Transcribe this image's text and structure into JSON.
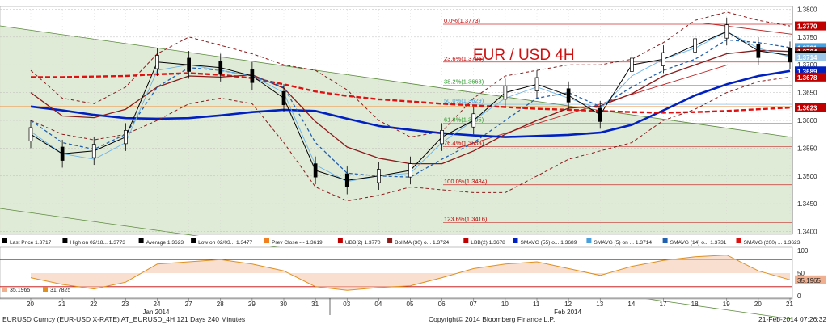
{
  "chart_data": {
    "type": "line",
    "title": "EUR / USD 4H",
    "y_range": [
      1.3395,
      1.3805
    ],
    "y_ticks": [
      "1.3800",
      "1.3750",
      "1.3700",
      "1.3650",
      "1.3600",
      "1.3550",
      "1.3500",
      "1.3450",
      "1.3400"
    ],
    "x_ticks": [
      "20",
      "21",
      "22",
      "23",
      "24",
      "27",
      "28",
      "29",
      "30",
      "31",
      "03",
      "04",
      "05",
      "06",
      "07",
      "10",
      "11",
      "12",
      "13",
      "14",
      "17",
      "18",
      "19",
      "20",
      "21"
    ],
    "month_labels": [
      {
        "text": "Jan 2014",
        "day": "24"
      },
      {
        "text": "Feb 2014",
        "day": "12"
      }
    ],
    "price_tags": [
      {
        "value": 1.377,
        "label": "1.3770",
        "color": "#c00000"
      },
      {
        "value": 1.3731,
        "label": "1.3731",
        "color": "#4aa0dd"
      },
      {
        "value": 1.3724,
        "label": "1.3724",
        "color": "#8b1a1a"
      },
      {
        "value": 1.3717,
        "label": "1.3717",
        "color": "#000000"
      },
      {
        "value": 1.3714,
        "label": "1.3714",
        "color": "#9ec6e8"
      },
      {
        "value": 1.3689,
        "label": "1.3689",
        "color": "#0020c0"
      },
      {
        "value": 1.3678,
        "label": "1.3678",
        "color": "#c00000"
      },
      {
        "value": 1.3623,
        "label": "1.3623",
        "color": "#c00000"
      }
    ],
    "fibonacci": [
      {
        "label": "0.0%(1.3773)",
        "value": 1.3773
      },
      {
        "label": "23.6%(1.3705)",
        "value": 1.3705
      },
      {
        "label": "38.2%(1.3663)",
        "value": 1.3663
      },
      {
        "label": "50.0%(1.3629)",
        "value": 1.3629
      },
      {
        "label": "61.8%(1.3595)",
        "value": 1.3595
      },
      {
        "label": "76.4%(1.3553)",
        "value": 1.3553
      },
      {
        "label": "100.0%(1.3484)",
        "value": 1.3484
      },
      {
        "label": "123.6%(1.3416)",
        "value": 1.3416
      }
    ],
    "series": [
      {
        "name": "SMAVG (55)",
        "color": "#0020c0",
        "values": [
          1.3625,
          1.3618,
          1.361,
          1.3604,
          1.3603,
          1.3604,
          1.3609,
          1.3615,
          1.3619,
          1.3617,
          1.3603,
          1.359,
          1.3583,
          1.3577,
          1.3573,
          1.357,
          1.3572,
          1.3574,
          1.3578,
          1.3592,
          1.3618,
          1.3645,
          1.3665,
          1.368,
          1.3689
        ]
      },
      {
        "name": "SMAVG (200)",
        "color": "#e01010",
        "values": [
          1.3678,
          1.3678,
          1.3679,
          1.368,
          1.3683,
          1.3685,
          1.3682,
          1.3676,
          1.3665,
          1.3652,
          1.3644,
          1.3638,
          1.3634,
          1.363,
          1.3627,
          1.3624,
          1.3621,
          1.3619,
          1.3617,
          1.3615,
          1.3614,
          1.3615,
          1.3617,
          1.362,
          1.3623
        ]
      },
      {
        "name": "BollMA (30)",
        "color": "#8b1a1a",
        "values": [
          1.365,
          1.3608,
          1.3605,
          1.362,
          1.366,
          1.368,
          1.3678,
          1.3682,
          1.3658,
          1.3598,
          1.3552,
          1.3532,
          1.3522,
          1.3522,
          1.3545,
          1.3575,
          1.36,
          1.3622,
          1.3626,
          1.3648,
          1.368,
          1.37,
          1.372,
          1.3726,
          1.3724
        ]
      },
      {
        "name": "UBB(2)",
        "color": "#8b1a1a",
        "values": [
          1.369,
          1.364,
          1.363,
          1.366,
          1.372,
          1.375,
          1.3735,
          1.372,
          1.37,
          1.369,
          1.3655,
          1.36,
          1.357,
          1.358,
          1.364,
          1.368,
          1.369,
          1.37,
          1.37,
          1.371,
          1.374,
          1.378,
          1.3795,
          1.378,
          1.377
        ]
      },
      {
        "name": "LBB(2)",
        "color": "#8b1a1a",
        "values": [
          1.36,
          1.3575,
          1.3565,
          1.3575,
          1.36,
          1.363,
          1.364,
          1.363,
          1.356,
          1.348,
          1.3455,
          1.3465,
          1.348,
          1.3475,
          1.347,
          1.347,
          1.35,
          1.353,
          1.3545,
          1.356,
          1.36,
          1.362,
          1.365,
          1.367,
          1.3678
        ]
      },
      {
        "name": "SMAVG (14)",
        "color": "#2060b0",
        "values": [
          1.36,
          1.356,
          1.3548,
          1.3575,
          1.366,
          1.3695,
          1.369,
          1.368,
          1.366,
          1.356,
          1.3505,
          1.35,
          1.3498,
          1.353,
          1.356,
          1.36,
          1.364,
          1.365,
          1.3625,
          1.366,
          1.369,
          1.371,
          1.3745,
          1.374,
          1.3731
        ]
      },
      {
        "name": "SMAVG (5)",
        "color": "#6ab4e8",
        "values": [
          1.358,
          1.354,
          1.353,
          1.356,
          1.369,
          1.37,
          1.369,
          1.368,
          1.365,
          1.352,
          1.349,
          1.35,
          1.3505,
          1.356,
          1.36,
          1.364,
          1.366,
          1.364,
          1.362,
          1.368,
          1.371,
          1.373,
          1.376,
          1.373,
          1.3714
        ]
      },
      {
        "name": "Last Price",
        "color": "#000000",
        "values": [
          1.3575,
          1.354,
          1.3545,
          1.357,
          1.3705,
          1.37,
          1.3695,
          1.368,
          1.364,
          1.351,
          1.3492,
          1.35,
          1.351,
          1.357,
          1.36,
          1.365,
          1.3665,
          1.3645,
          1.361,
          1.37,
          1.371,
          1.3735,
          1.376,
          1.3725,
          1.3717
        ]
      }
    ],
    "oscillator": {
      "range": [
        0,
        100
      ],
      "ticks": [
        "100",
        "50",
        "0"
      ],
      "upper_level": 80,
      "lower_level": 20,
      "value_label": "35.1965",
      "values": [
        40,
        25,
        15,
        30,
        70,
        75,
        80,
        70,
        55,
        20,
        12,
        18,
        22,
        40,
        60,
        70,
        75,
        60,
        45,
        65,
        78,
        86,
        90,
        55,
        35.1965
      ]
    },
    "legend": [
      {
        "label": "Last Price  1.3717",
        "color": "#000000"
      },
      {
        "label": "High on 02/18...  1.3773",
        "color": "#000000"
      },
      {
        "label": "Average  1.3623",
        "color": "#000000"
      },
      {
        "label": "Low on 02/03...  1.3477",
        "color": "#000000"
      },
      {
        "label": "Prev Close  ---  1.3619",
        "color": "#f08020"
      },
      {
        "label": "UBB(2)  1.3770",
        "color": "#c00000"
      },
      {
        "label": "BollMA (30) o...  1.3724",
        "color": "#8b1a1a"
      },
      {
        "label": "LBB(2)  1.3678",
        "color": "#c00000"
      },
      {
        "label": "SMAVG (55) o...  1.3689",
        "color": "#0020c0"
      },
      {
        "label": "SMAVG (5) on ...  1.3714",
        "color": "#4aa0dd"
      },
      {
        "label": "SMAVG (14) o...  1.3731",
        "color": "#2060b0"
      },
      {
        "label": "SMAVG (200) ...  1.3623",
        "color": "#e01010"
      }
    ],
    "osc_legend": [
      {
        "label": "35.1965",
        "color": "#f0b090"
      },
      {
        "label": "31.7825",
        "color": "#e09020"
      }
    ]
  },
  "footer": {
    "left": "EURUSD Curncy (EUR-USD X-RATE) AT_EURUSD_4H 121 Days 240 Minutes",
    "center": "Copyright© 2014 Bloomberg Finance L.P.",
    "right": "21-Feb-2014 07:26:32"
  },
  "colors": {
    "plot_bg": "#ffffff",
    "channel_fill": "#dbe8d0",
    "channel_line": "#5a8a3a",
    "grid": "#bbbbbb"
  }
}
